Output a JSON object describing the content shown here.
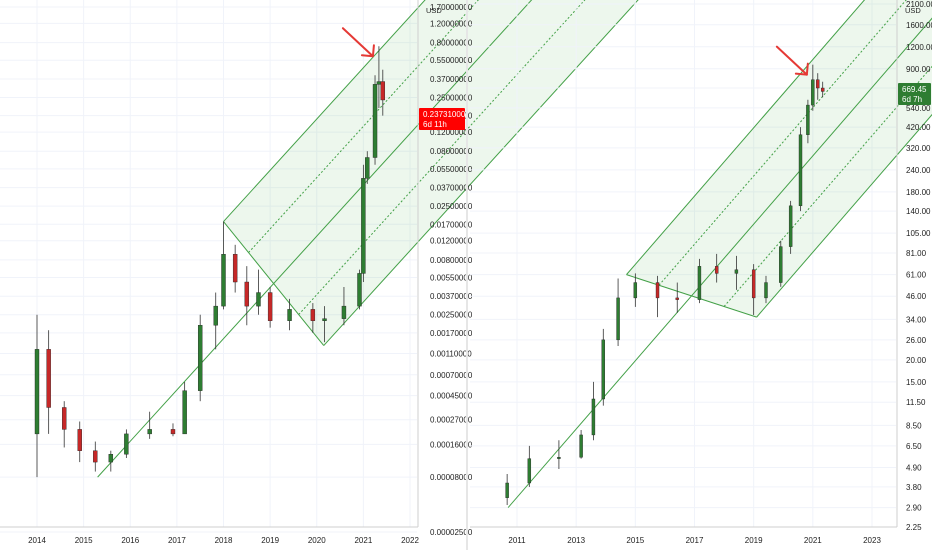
{
  "chart_data": [
    {
      "type": "candlestick",
      "scale": "log",
      "grid": true,
      "y_axis_unit": "USD",
      "y_ticks": [
        "1.70000000",
        "1.20000000",
        "0.80000000",
        "0.55000000",
        "0.37000000",
        "0.25000000",
        "0.17000000",
        "0.12000000",
        "0.08000000",
        "0.05500000",
        "0.03700000",
        "0.02500000",
        "0.01700000",
        "0.01200000",
        "0.00800000",
        "0.00550000",
        "0.00370000",
        "0.00250000",
        "0.00170000",
        "0.00110000",
        "0.00070000",
        "0.00045000",
        "0.00027000",
        "0.00016000",
        "0.00008000",
        "0.00002500"
      ],
      "x_ticks": [
        "2014",
        "2015",
        "2016",
        "2017",
        "2018",
        "2019",
        "2020",
        "2021",
        "2022"
      ],
      "last_price_badge": {
        "price": "0.23731000",
        "countdown": "6d 11h",
        "color": "#ff0000"
      },
      "annotation": {
        "type": "arrow",
        "color": "#e53935",
        "points_to": "2021 peak"
      },
      "pitchfork_color": "#43a047",
      "candles_approx": [
        {
          "t": "2014-01",
          "o": 0.0002,
          "h": 0.0025,
          "l": 8e-05,
          "c": 0.0012
        },
        {
          "t": "2014-04",
          "o": 0.0012,
          "h": 0.0018,
          "l": 0.0002,
          "c": 0.00035
        },
        {
          "t": "2014-08",
          "o": 0.00035,
          "h": 0.0004,
          "l": 0.00015,
          "c": 0.00022
        },
        {
          "t": "2014-12",
          "o": 0.00022,
          "h": 0.00026,
          "l": 0.00011,
          "c": 0.00014
        },
        {
          "t": "2015-04",
          "o": 0.00014,
          "h": 0.00017,
          "l": 9e-05,
          "c": 0.00011
        },
        {
          "t": "2015-08",
          "o": 0.00011,
          "h": 0.00014,
          "l": 9e-05,
          "c": 0.00013
        },
        {
          "t": "2015-12",
          "o": 0.00013,
          "h": 0.00022,
          "l": 0.00012,
          "c": 0.0002
        },
        {
          "t": "2016-06",
          "o": 0.0002,
          "h": 0.00032,
          "l": 0.00018,
          "c": 0.00022
        },
        {
          "t": "2016-12",
          "o": 0.00022,
          "h": 0.00025,
          "l": 0.00019,
          "c": 0.0002
        },
        {
          "t": "2017-03",
          "o": 0.0002,
          "h": 0.0006,
          "l": 0.0002,
          "c": 0.0005
        },
        {
          "t": "2017-07",
          "o": 0.0005,
          "h": 0.0025,
          "l": 0.0004,
          "c": 0.002
        },
        {
          "t": "2017-11",
          "o": 0.002,
          "h": 0.004,
          "l": 0.0012,
          "c": 0.003
        },
        {
          "t": "2018-01",
          "o": 0.003,
          "h": 0.018,
          "l": 0.0028,
          "c": 0.009
        },
        {
          "t": "2018-04",
          "o": 0.009,
          "h": 0.011,
          "l": 0.004,
          "c": 0.005
        },
        {
          "t": "2018-07",
          "o": 0.005,
          "h": 0.007,
          "l": 0.002,
          "c": 0.003
        },
        {
          "t": "2018-10",
          "o": 0.003,
          "h": 0.0065,
          "l": 0.0025,
          "c": 0.004
        },
        {
          "t": "2019-01",
          "o": 0.004,
          "h": 0.0045,
          "l": 0.0019,
          "c": 0.0022
        },
        {
          "t": "2019-06",
          "o": 0.0022,
          "h": 0.0035,
          "l": 0.0018,
          "c": 0.0028
        },
        {
          "t": "2019-12",
          "o": 0.0028,
          "h": 0.0032,
          "l": 0.0017,
          "c": 0.0022
        },
        {
          "t": "2020-03",
          "o": 0.0022,
          "h": 0.003,
          "l": 0.0014,
          "c": 0.0023
        },
        {
          "t": "2020-08",
          "o": 0.0023,
          "h": 0.0045,
          "l": 0.002,
          "c": 0.003
        },
        {
          "t": "2020-12",
          "o": 0.003,
          "h": 0.0065,
          "l": 0.0028,
          "c": 0.006
        },
        {
          "t": "2021-01",
          "o": 0.006,
          "h": 0.06,
          "l": 0.005,
          "c": 0.045
        },
        {
          "t": "2021-02",
          "o": 0.045,
          "h": 0.08,
          "l": 0.04,
          "c": 0.07
        },
        {
          "t": "2021-04",
          "o": 0.07,
          "h": 0.4,
          "l": 0.06,
          "c": 0.33
        },
        {
          "t": "2021-05",
          "o": 0.33,
          "h": 0.74,
          "l": 0.2,
          "c": 0.35
        },
        {
          "t": "2021-06",
          "o": 0.35,
          "h": 0.45,
          "l": 0.17,
          "c": 0.237
        }
      ]
    },
    {
      "type": "candlestick",
      "scale": "log",
      "grid": true,
      "y_axis_unit": "USD",
      "y_ticks": [
        "2100.00",
        "1600.00",
        "1200.00",
        "900.00",
        "700.00",
        "540.00",
        "420.00",
        "320.00",
        "240.00",
        "180.00",
        "140.00",
        "105.00",
        "81.00",
        "61.00",
        "46.00",
        "34.00",
        "26.00",
        "20.00",
        "15.00",
        "11.50",
        "8.50",
        "6.50",
        "4.90",
        "3.80",
        "2.90",
        "2.25"
      ],
      "x_ticks": [
        "2011",
        "2013",
        "2015",
        "2017",
        "2019",
        "2021",
        "2023"
      ],
      "last_price_badge": {
        "price": "669.45",
        "countdown": "6d 7h",
        "color": "#2e7d32"
      },
      "annotation": {
        "type": "arrow",
        "color": "#e53935",
        "points_to": "2021 peak"
      },
      "pitchfork_color": "#43a047",
      "candles_approx": [
        {
          "t": "2010-09",
          "o": 3.3,
          "h": 4.5,
          "l": 3.0,
          "c": 4.0
        },
        {
          "t": "2011-06",
          "o": 4.0,
          "h": 6.5,
          "l": 3.8,
          "c": 5.5
        },
        {
          "t": "2012-06",
          "o": 5.5,
          "h": 7.0,
          "l": 4.8,
          "c": 5.6
        },
        {
          "t": "2013-03",
          "o": 5.6,
          "h": 8.0,
          "l": 5.5,
          "c": 7.5
        },
        {
          "t": "2013-08",
          "o": 7.5,
          "h": 15.0,
          "l": 7.0,
          "c": 12.0
        },
        {
          "t": "2013-12",
          "o": 12.0,
          "h": 30.0,
          "l": 11.0,
          "c": 26.0
        },
        {
          "t": "2014-06",
          "o": 26.0,
          "h": 58.0,
          "l": 24.0,
          "c": 45.0
        },
        {
          "t": "2015-01",
          "o": 45.0,
          "h": 62.0,
          "l": 40.0,
          "c": 55.0
        },
        {
          "t": "2015-10",
          "o": 55.0,
          "h": 60.0,
          "l": 35.0,
          "c": 45.0
        },
        {
          "t": "2016-06",
          "o": 45.0,
          "h": 55.0,
          "l": 37.0,
          "c": 44.0
        },
        {
          "t": "2017-03",
          "o": 44.0,
          "h": 75.0,
          "l": 42.0,
          "c": 68.0
        },
        {
          "t": "2017-10",
          "o": 68.0,
          "h": 80.0,
          "l": 55.0,
          "c": 62.0
        },
        {
          "t": "2018-06",
          "o": 62.0,
          "h": 78.0,
          "l": 50.0,
          "c": 65.0
        },
        {
          "t": "2019-01",
          "o": 65.0,
          "h": 70.0,
          "l": 36.0,
          "c": 45.0
        },
        {
          "t": "2019-06",
          "o": 45.0,
          "h": 60.0,
          "l": 42.0,
          "c": 55.0
        },
        {
          "t": "2019-12",
          "o": 55.0,
          "h": 95.0,
          "l": 52.0,
          "c": 88.0
        },
        {
          "t": "2020-04",
          "o": 88.0,
          "h": 160.0,
          "l": 80.0,
          "c": 150.0
        },
        {
          "t": "2020-08",
          "o": 150.0,
          "h": 420.0,
          "l": 140.0,
          "c": 380.0
        },
        {
          "t": "2020-11",
          "o": 380.0,
          "h": 600.0,
          "l": 340.0,
          "c": 560.0
        },
        {
          "t": "2021-01",
          "o": 560.0,
          "h": 950.0,
          "l": 520.0,
          "c": 780.0
        },
        {
          "t": "2021-03",
          "o": 780.0,
          "h": 850.0,
          "l": 600.0,
          "c": 700.0
        },
        {
          "t": "2021-05",
          "o": 700.0,
          "h": 760.0,
          "l": 620.0,
          "c": 669.45
        }
      ]
    }
  ]
}
